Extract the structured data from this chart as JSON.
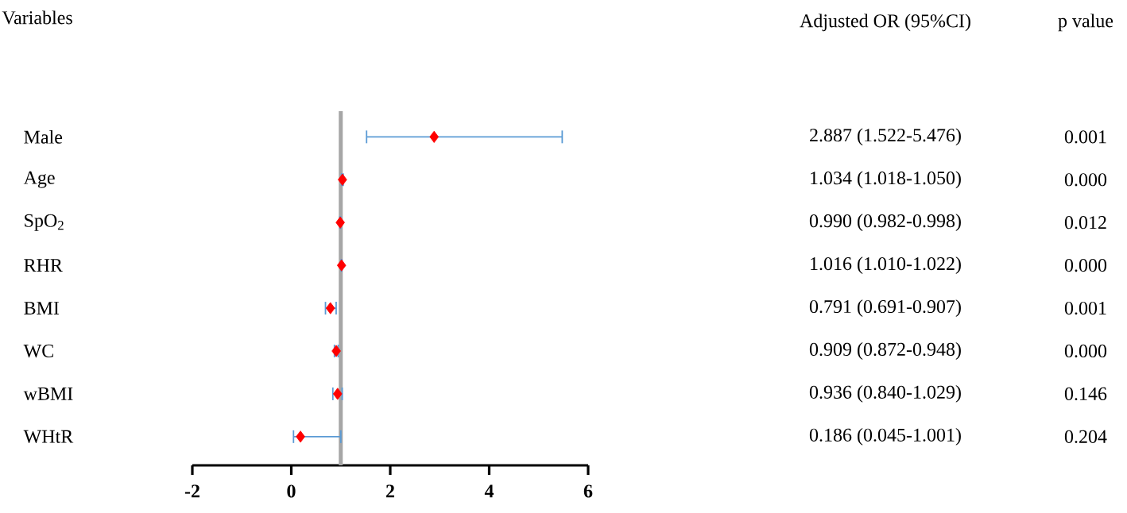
{
  "chart_data": {
    "type": "scatter",
    "orientation": "horizontal",
    "categories": [
      "Male",
      "Age",
      "SpO$_{2}$",
      "RHR",
      "BMI",
      "WC",
      "wBMI",
      "WHtR"
    ],
    "values": [
      2.887,
      1.034,
      0.99,
      1.016,
      0.791,
      0.909,
      0.936,
      0.186
    ],
    "errors": [
      [
        1.522,
        5.476
      ],
      [
        1.018,
        1.05
      ],
      [
        0.982,
        0.998
      ],
      [
        1.01,
        1.022
      ],
      [
        0.691,
        0.907
      ],
      [
        0.872,
        0.948
      ],
      [
        0.84,
        1.029
      ],
      [
        0.045,
        1.001
      ]
    ],
    "value_labels": [
      "2.887 (1.522-5.476)",
      "1.034 (1.018-1.050)",
      "0.990 (0.982-0.998)",
      "1.016 (1.010-1.022)",
      "0.791 (0.691-0.907)",
      "0.909 (0.872-0.948)",
      "0.936 (0.840-1.029)",
      "0.186 (0.045-1.001)"
    ],
    "color": "#ff0000",
    "marker": "diamond",
    "xlim": [
      -2,
      6
    ],
    "xticks": [
      -2,
      0,
      2,
      4,
      6
    ],
    "ref_lines": [
      {
        "axis": "x",
        "value": 1,
        "color": "#a6a6a6"
      }
    ],
    "annotations": [
      "Variables",
      "Adjusted OR (95%CI)",
      "p value",
      "0.001",
      "0.000",
      "0.012",
      "0.000",
      "0.001",
      "0.000",
      "0.146",
      "0.204"
    ]
  }
}
